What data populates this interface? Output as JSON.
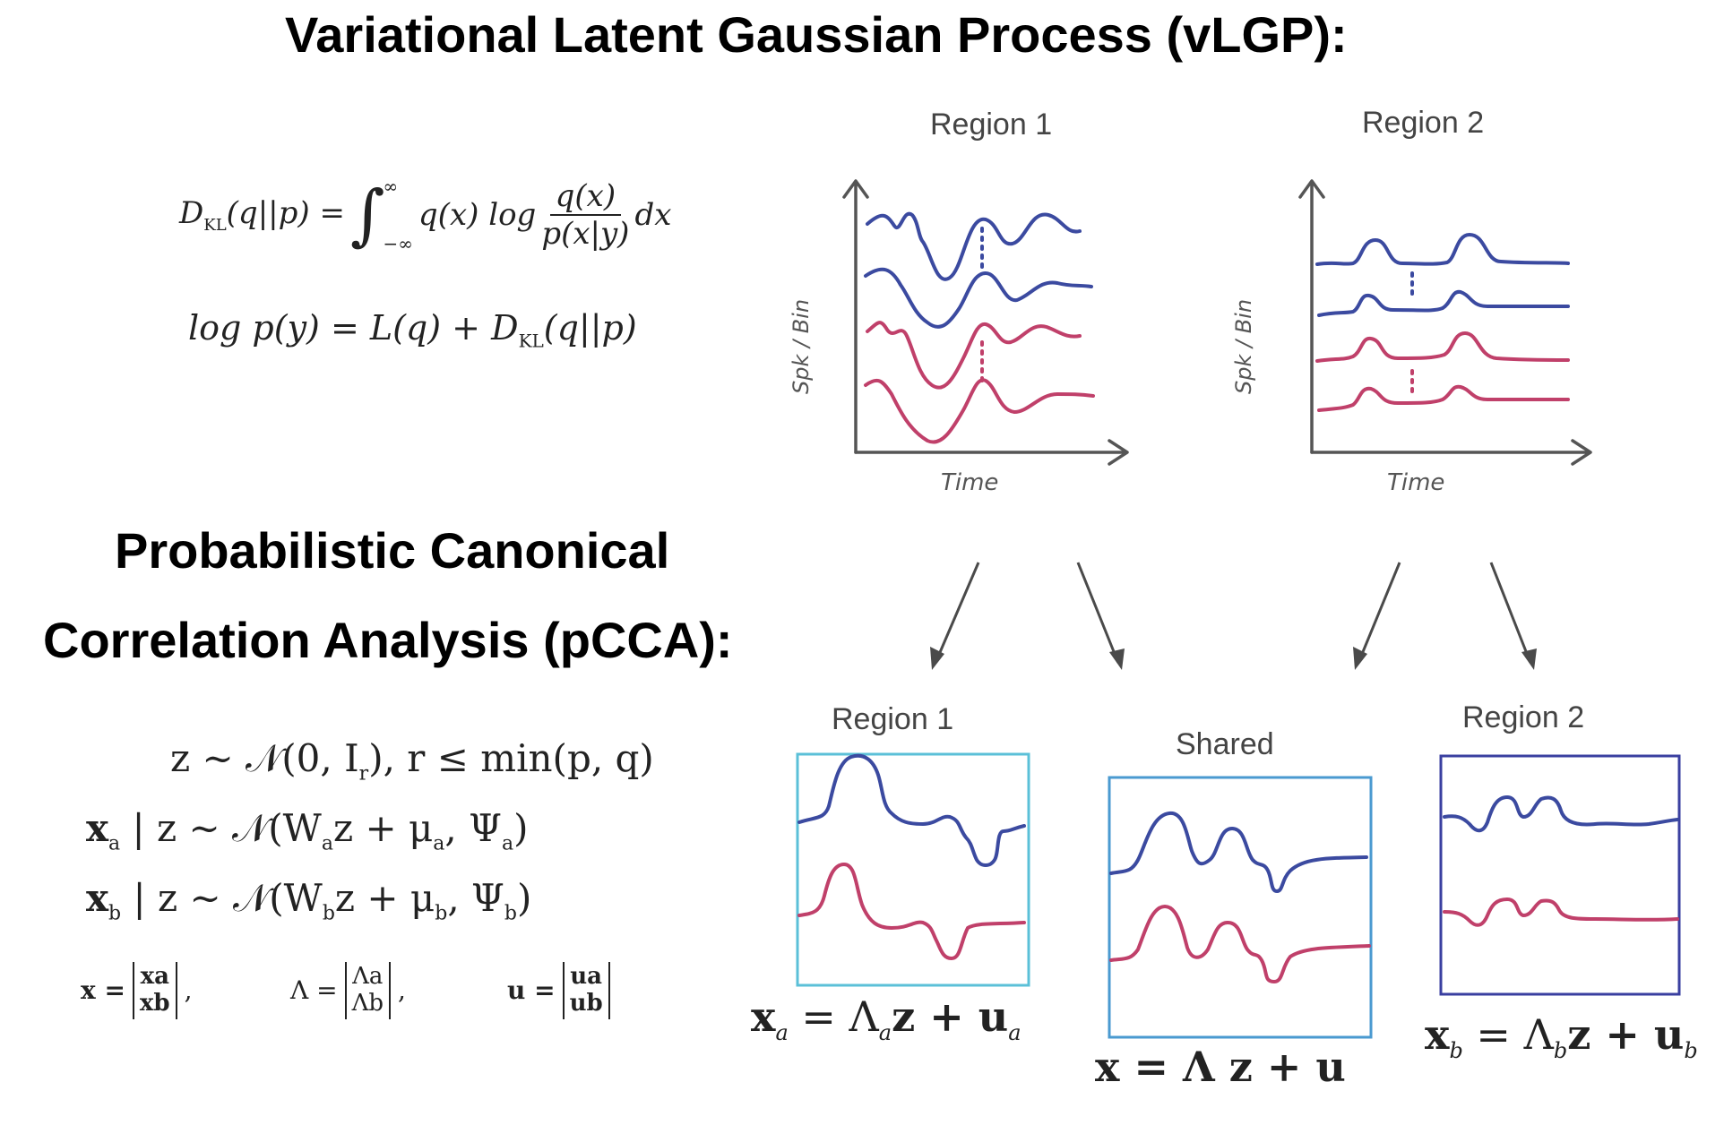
{
  "title": "Variational Latent Gaussian Process (vLGP):",
  "pcca_title_line1": "Probabilistic Canonical",
  "pcca_title_line2": "Correlation Analysis (pCCA):",
  "vlgp_eq1_lhs": "D",
  "vlgp_eq1_sub": "KL",
  "vlgp_eq1_arg": "(q||p) =",
  "vlgp_eq1_int_top": "∞",
  "vlgp_eq1_int_bottom": "−∞",
  "vlgp_eq1_mid": "q(x) log",
  "vlgp_eq1_num": "q(x)",
  "vlgp_eq1_den": "p(x|y)",
  "vlgp_eq1_end": "dx",
  "vlgp_eq2": "log p(y) = L(q) + D",
  "vlgp_eq2_sub": "KL",
  "vlgp_eq2_end": "(q||p)",
  "pcca_eq1": "z ∼ 𝒩(0, I",
  "pcca_eq1_sub": "r",
  "pcca_eq1_end": "),     r ≤ min(p, q)",
  "pcca_eq2": "x",
  "pcca_eq2_sub": "a",
  "pcca_eq2_rest": " | z ∼ 𝒩(W",
  "pcca_eq2_sub2": "a",
  "pcca_eq2_rest2": "z + μ",
  "pcca_eq2_sub3": "a",
  "pcca_eq2_rest3": ", Ψ",
  "pcca_eq2_sub4": "a",
  "pcca_eq2_end": ")",
  "pcca_eq3": "x",
  "pcca_eq3_sub": "b",
  "pcca_eq3_rest": " | z ∼ 𝒩(W",
  "pcca_eq3_sub2": "b",
  "pcca_eq3_rest2": "z + μ",
  "pcca_eq3_sub3": "b",
  "pcca_eq3_rest3": ", Ψ",
  "pcca_eq3_sub4": "b",
  "pcca_eq3_end": ")",
  "stack_x_lhs": "x =",
  "stack_x_top": "xa",
  "stack_x_bottom": "xb",
  "stack_lambda_lhs": "Λ =",
  "stack_lambda_top": "Λa",
  "stack_lambda_bottom": "Λb",
  "stack_u_lhs": "u =",
  "stack_u_top": "ua",
  "stack_u_bottom": "ub",
  "top_region1_label": "Region 1",
  "top_region2_label": "Region 2",
  "y_axis_label": "Spk / Bin",
  "x_axis_label": "Time",
  "bottom_region1_label": "Region 1",
  "bottom_shared_label": "Shared",
  "bottom_region2_label": "Region 2",
  "eq_region1": "x",
  "eq_region1_sub": "a",
  "eq_region1_rest": " = Λ",
  "eq_region1_sub2": "a",
  "eq_region1_rest2": "z + u",
  "eq_region1_sub3": "a",
  "eq_shared": "x = Λ z + u",
  "eq_region2": "x",
  "eq_region2_sub": "b",
  "eq_region2_rest": " = Λ",
  "eq_region2_sub2": "b",
  "eq_region2_rest2": "z + u",
  "eq_region2_sub3": "b",
  "colors": {
    "trace_blue": "#3b4aa0",
    "trace_red": "#c0406a",
    "box_region1": "#5bc0d8",
    "box_shared": "#4a9ad0",
    "box_region2": "#3a3fa0"
  }
}
